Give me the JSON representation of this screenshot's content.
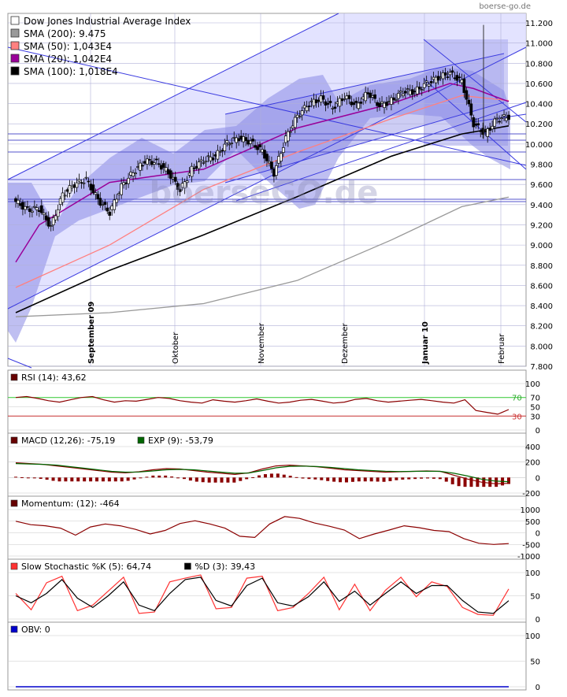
{
  "source": "boerse-go.de",
  "watermark": "boerseGO.de",
  "main": {
    "legend": [
      {
        "label": "Dow Jones Industrial Average Index",
        "color": "#ffffff"
      },
      {
        "label": "SMA (200): 9.475",
        "color": "#999999"
      },
      {
        "label": "SMA (50): 1,043E4",
        "color": "#ff8080"
      },
      {
        "label": "SMA (20): 1,042E4",
        "color": "#990099"
      },
      {
        "label": "SMA (100): 1,018E4",
        "color": "#000000"
      }
    ]
  },
  "panels": {
    "rsi": {
      "legend": [
        {
          "label": "RSI (14): 43,62",
          "color": "#660000"
        }
      ]
    },
    "macd": {
      "legend": [
        {
          "label": "MACD (12,26): -75,19",
          "color": "#660000"
        },
        {
          "label": "EXP (9): -53,79",
          "color": "#006600"
        }
      ]
    },
    "momentum": {
      "legend": [
        {
          "label": "Momentum: (12): -464",
          "color": "#660000"
        }
      ]
    },
    "stoch": {
      "legend": [
        {
          "label": "Slow Stochastic %K (5): 64,74",
          "color": "#ff3333"
        },
        {
          "label": "%D (3): 39,43",
          "color": "#000000"
        }
      ]
    },
    "obv": {
      "legend": [
        {
          "label": "OBV: 0",
          "color": "#0000cc"
        }
      ]
    }
  },
  "chart_data": [
    {
      "type": "candlestick",
      "title": "Dow Jones Industrial Average Index",
      "x_labels": [
        "September 09",
        "Oktober",
        "November",
        "Dezember",
        "Januar 10",
        "Februar"
      ],
      "ylim": [
        7800,
        11200
      ],
      "y_ticks": [
        "7.800",
        "8.000",
        "8.200",
        "8.400",
        "8.600",
        "8.800",
        "9.000",
        "9.200",
        "9.400",
        "9.600",
        "9.800",
        "10.000",
        "10.200",
        "10.400",
        "10.600",
        "10.800",
        "11.000",
        "11.200"
      ],
      "close_path": [
        [
          0,
          9430
        ],
        [
          5,
          9350
        ],
        [
          10,
          9360
        ],
        [
          15,
          9180
        ],
        [
          20,
          9500
        ],
        [
          25,
          9600
        ],
        [
          30,
          9650
        ],
        [
          35,
          9450
        ],
        [
          40,
          9320
        ],
        [
          45,
          9580
        ],
        [
          50,
          9720
        ],
        [
          55,
          9830
        ],
        [
          60,
          9820
        ],
        [
          65,
          9720
        ],
        [
          70,
          9540
        ],
        [
          75,
          9750
        ],
        [
          80,
          9840
        ],
        [
          85,
          9880
        ],
        [
          90,
          10010
        ],
        [
          95,
          10060
        ],
        [
          100,
          10020
        ],
        [
          105,
          9930
        ],
        [
          110,
          9710
        ],
        [
          115,
          10060
        ],
        [
          120,
          10280
        ],
        [
          125,
          10400
        ],
        [
          130,
          10450
        ],
        [
          135,
          10360
        ],
        [
          140,
          10470
        ],
        [
          145,
          10380
        ],
        [
          150,
          10510
        ],
        [
          155,
          10380
        ],
        [
          160,
          10430
        ],
        [
          165,
          10520
        ],
        [
          170,
          10520
        ],
        [
          175,
          10600
        ],
        [
          180,
          10660
        ],
        [
          185,
          10700
        ],
        [
          190,
          10620
        ],
        [
          195,
          10200
        ],
        [
          200,
          10100
        ],
        [
          205,
          10250
        ],
        [
          210,
          10270
        ]
      ],
      "sma_200": [
        [
          0,
          8290
        ],
        [
          40,
          8330
        ],
        [
          80,
          8420
        ],
        [
          120,
          8650
        ],
        [
          160,
          9050
        ],
        [
          190,
          9380
        ],
        [
          210,
          9475
        ]
      ],
      "sma_100": [
        [
          0,
          8330
        ],
        [
          40,
          8750
        ],
        [
          80,
          9100
        ],
        [
          120,
          9480
        ],
        [
          160,
          9880
        ],
        [
          190,
          10100
        ],
        [
          210,
          10180
        ]
      ],
      "sma_50": [
        [
          0,
          8580
        ],
        [
          40,
          9000
        ],
        [
          80,
          9550
        ],
        [
          120,
          9920
        ],
        [
          160,
          10250
        ],
        [
          190,
          10480
        ],
        [
          210,
          10430
        ]
      ],
      "sma_20": [
        [
          0,
          8830
        ],
        [
          10,
          9200
        ],
        [
          40,
          9620
        ],
        [
          80,
          9750
        ],
        [
          120,
          10160
        ],
        [
          160,
          10400
        ],
        [
          185,
          10600
        ],
        [
          195,
          10550
        ],
        [
          210,
          10420
        ]
      ]
    },
    {
      "type": "line",
      "title": "RSI (14)",
      "ylim": [
        0,
        100
      ],
      "y_ticks": [
        0,
        30,
        50,
        70,
        100
      ],
      "levels": [
        30,
        70
      ],
      "values": [
        70,
        72,
        68,
        63,
        60,
        65,
        70,
        72,
        65,
        60,
        63,
        62,
        66,
        70,
        68,
        63,
        60,
        58,
        65,
        62,
        60,
        63,
        67,
        62,
        58,
        60,
        64,
        66,
        62,
        58,
        60,
        66,
        68,
        63,
        60,
        62,
        64,
        66,
        63,
        60,
        58,
        65,
        42,
        38,
        34,
        44
      ]
    },
    {
      "type": "line",
      "title": "MACD (12,26)",
      "ylim": [
        -200,
        400
      ],
      "y_ticks": [
        -200,
        0,
        200,
        400
      ],
      "series": [
        {
          "name": "MACD (12,26)",
          "values": [
            190,
            180,
            170,
            150,
            130,
            110,
            90,
            70,
            60,
            75,
            100,
            115,
            110,
            90,
            70,
            55,
            40,
            60,
            110,
            150,
            160,
            150,
            140,
            120,
            100,
            90,
            80,
            70,
            75,
            80,
            85,
            80,
            30,
            -20,
            -60,
            -80,
            -75
          ]
        },
        {
          "name": "EXP (9)",
          "values": [
            180,
            175,
            170,
            160,
            140,
            120,
            100,
            80,
            70,
            72,
            85,
            100,
            105,
            100,
            85,
            70,
            55,
            58,
            90,
            125,
            145,
            148,
            142,
            130,
            115,
            100,
            90,
            82,
            78,
            80,
            82,
            80,
            55,
            20,
            -20,
            -45,
            -54
          ]
        }
      ]
    },
    {
      "type": "line",
      "title": "Momentum (12)",
      "ylim": [
        -1000,
        1000
      ],
      "y_ticks": [
        -1000,
        -500,
        0,
        500,
        1000
      ],
      "values": [
        500,
        350,
        300,
        200,
        -100,
        250,
        380,
        300,
        150,
        -50,
        100,
        400,
        520,
        380,
        200,
        -150,
        -200,
        380,
        700,
        620,
        420,
        280,
        120,
        -250,
        -50,
        120,
        300,
        220,
        100,
        50,
        -250,
        -450,
        -500,
        -464
      ]
    },
    {
      "type": "line",
      "title": "Slow Stochastic",
      "ylim": [
        0,
        100
      ],
      "y_ticks": [
        0,
        50,
        100
      ],
      "series": [
        {
          "name": "%K (5)",
          "values": [
            55,
            20,
            78,
            92,
            18,
            30,
            60,
            90,
            12,
            15,
            80,
            88,
            95,
            22,
            25,
            88,
            92,
            18,
            25,
            55,
            90,
            20,
            75,
            18,
            62,
            90,
            48,
            80,
            70,
            25,
            10,
            8,
            64.74
          ]
        },
        {
          "name": "%D (3)",
          "values": [
            50,
            35,
            55,
            85,
            45,
            25,
            50,
            80,
            30,
            18,
            55,
            85,
            90,
            40,
            28,
            72,
            88,
            35,
            28,
            48,
            80,
            38,
            60,
            30,
            55,
            80,
            55,
            72,
            72,
            40,
            15,
            12,
            39.43
          ]
        }
      ]
    },
    {
      "type": "line",
      "title": "OBV",
      "ylim": [
        0,
        100
      ],
      "y_ticks": [
        0,
        50,
        100
      ],
      "values": [
        0,
        0
      ]
    }
  ]
}
